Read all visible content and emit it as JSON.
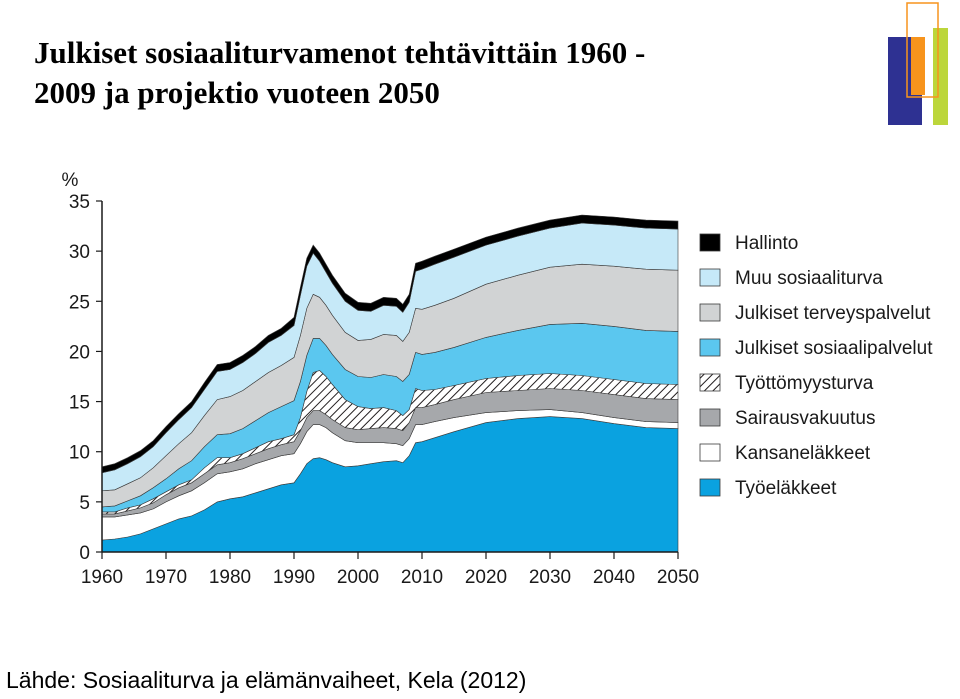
{
  "slide": {
    "title_line1": "Julkiset sosiaaliturvamenot tehtävittäin 1960 -",
    "title_line2": "2009 ja projektio vuoteen 2050",
    "source": "Lähde: Sosiaaliturva ja elämänvaiheet, Kela (2012)"
  },
  "colors": {
    "Työeläkkeet": "#0aa2e0",
    "Kansaneläkkeet": "#ffffff",
    "Sairausvakuutus": "#a6a8ab",
    "Työttömyysturva": "hatch",
    "Julkiset sosiaalipalvelut": "#5bc7ef",
    "Julkiset terveyspalvelut": "#d1d3d4",
    "Muu sosiaaliturva": "#c6e9f8",
    "Hallinto": "#000000",
    "logo_blue": "#2e3192",
    "logo_orange": "#f7941d",
    "logo_green": "#bcd63b"
  },
  "chart_data": {
    "type": "area",
    "stacked": true,
    "ylabel": "%",
    "ylim": [
      0,
      35
    ],
    "yticks": [
      0,
      5,
      10,
      15,
      20,
      25,
      30,
      35
    ],
    "xlim": [
      1960,
      2050
    ],
    "xticks": [
      1960,
      1970,
      1980,
      1990,
      2000,
      2010,
      2020,
      2030,
      2040,
      2050
    ],
    "legend_position": "right",
    "x": [
      1960,
      1962,
      1964,
      1966,
      1968,
      1970,
      1972,
      1974,
      1976,
      1978,
      1980,
      1982,
      1984,
      1986,
      1988,
      1990,
      1991,
      1992,
      1993,
      1994,
      1995,
      1996,
      1998,
      2000,
      2002,
      2004,
      2006,
      2007,
      2008,
      2009,
      2010,
      2012,
      2015,
      2020,
      2025,
      2030,
      2035,
      2040,
      2045,
      2050
    ],
    "series": [
      {
        "name": "Työeläkkeet",
        "values": [
          1.2,
          1.3,
          1.5,
          1.8,
          2.3,
          2.8,
          3.3,
          3.6,
          4.2,
          5.0,
          5.3,
          5.5,
          5.9,
          6.3,
          6.7,
          6.9,
          7.8,
          8.8,
          9.3,
          9.4,
          9.2,
          8.9,
          8.5,
          8.6,
          8.8,
          9.0,
          9.1,
          8.9,
          9.6,
          10.9,
          11.0,
          11.4,
          12.0,
          12.9,
          13.3,
          13.5,
          13.3,
          12.8,
          12.4,
          12.3
        ]
      },
      {
        "name": "Kansaneläkkeet",
        "values": [
          2.3,
          2.2,
          2.2,
          2.1,
          2.0,
          2.2,
          2.3,
          2.5,
          2.7,
          2.8,
          2.7,
          2.8,
          2.9,
          2.9,
          2.9,
          2.9,
          3.0,
          3.2,
          3.4,
          3.3,
          3.2,
          3.0,
          2.6,
          2.3,
          2.1,
          1.9,
          1.7,
          1.7,
          1.7,
          1.8,
          1.7,
          1.6,
          1.4,
          1.0,
          0.8,
          0.7,
          0.6,
          0.6,
          0.6,
          0.6
        ]
      },
      {
        "name": "Sairausvakuutus",
        "values": [
          0.3,
          0.3,
          0.4,
          0.5,
          0.6,
          0.7,
          0.8,
          0.8,
          0.9,
          0.9,
          0.9,
          1.0,
          1.0,
          1.1,
          1.1,
          1.2,
          1.3,
          1.4,
          1.4,
          1.4,
          1.3,
          1.3,
          1.3,
          1.3,
          1.4,
          1.5,
          1.5,
          1.5,
          1.6,
          1.7,
          1.7,
          1.7,
          1.8,
          2.0,
          2.0,
          2.1,
          2.2,
          2.3,
          2.3,
          2.3
        ]
      },
      {
        "name": "Työttömyysturva",
        "values": [
          0.2,
          0.2,
          0.3,
          0.3,
          0.4,
          0.3,
          0.3,
          0.3,
          0.6,
          0.7,
          0.5,
          0.5,
          0.6,
          0.7,
          0.6,
          0.7,
          1.3,
          2.6,
          3.8,
          4.0,
          3.8,
          3.5,
          2.8,
          2.3,
          2.0,
          2.0,
          1.8,
          1.5,
          1.3,
          1.9,
          1.7,
          1.5,
          1.4,
          1.4,
          1.5,
          1.5,
          1.5,
          1.5,
          1.5,
          1.5
        ]
      },
      {
        "name": "Julkiset sosiaalipalvelut",
        "values": [
          0.5,
          0.6,
          0.7,
          0.9,
          1.1,
          1.3,
          1.6,
          1.9,
          2.1,
          2.3,
          2.4,
          2.5,
          2.7,
          2.9,
          3.2,
          3.4,
          3.6,
          3.6,
          3.4,
          3.2,
          3.1,
          3.0,
          3.0,
          3.0,
          3.1,
          3.3,
          3.4,
          3.4,
          3.5,
          3.6,
          3.6,
          3.7,
          3.8,
          4.1,
          4.5,
          4.9,
          5.2,
          5.3,
          5.3,
          5.3
        ]
      },
      {
        "name": "Julkiset terveyspalvelut",
        "values": [
          1.6,
          1.6,
          1.7,
          1.8,
          2.0,
          2.3,
          2.5,
          2.8,
          3.1,
          3.5,
          3.7,
          3.8,
          3.9,
          4.0,
          4.1,
          4.3,
          4.6,
          4.7,
          4.4,
          4.1,
          4.0,
          3.9,
          3.7,
          3.6,
          3.8,
          4.0,
          4.1,
          4.0,
          4.2,
          4.4,
          4.5,
          4.7,
          4.9,
          5.3,
          5.5,
          5.7,
          5.9,
          6.0,
          6.1,
          6.1
        ]
      },
      {
        "name": "Muu sosiaaliturva",
        "values": [
          1.8,
          2.0,
          2.0,
          2.1,
          2.1,
          2.3,
          2.4,
          2.5,
          2.6,
          2.8,
          2.7,
          2.8,
          2.8,
          3.0,
          3.0,
          3.2,
          4.0,
          4.2,
          4.1,
          3.6,
          3.3,
          3.2,
          3.1,
          3.0,
          2.8,
          2.9,
          2.9,
          2.9,
          3.0,
          3.7,
          4.0,
          4.1,
          4.1,
          3.9,
          3.9,
          3.9,
          4.1,
          4.1,
          4.1,
          4.1
        ]
      },
      {
        "name": "Hallinto",
        "values": [
          0.6,
          0.6,
          0.6,
          0.6,
          0.6,
          0.6,
          0.6,
          0.6,
          0.7,
          0.7,
          0.7,
          0.7,
          0.7,
          0.7,
          0.7,
          0.8,
          0.8,
          0.8,
          0.8,
          0.8,
          0.8,
          0.8,
          0.8,
          0.8,
          0.8,
          0.8,
          0.8,
          0.8,
          0.8,
          0.8,
          0.8,
          0.8,
          0.8,
          0.8,
          0.8,
          0.8,
          0.8,
          0.8,
          0.8,
          0.8
        ]
      }
    ]
  }
}
